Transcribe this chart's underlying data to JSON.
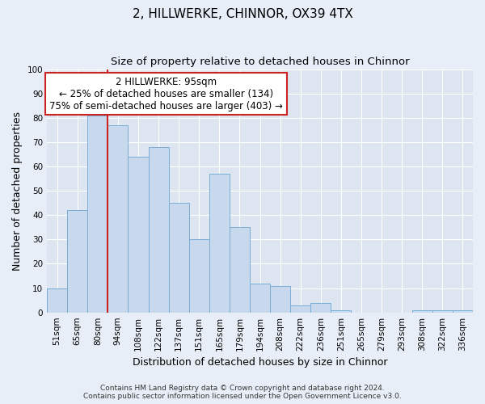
{
  "title": "2, HILLWERKE, CHINNOR, OX39 4TX",
  "subtitle": "Size of property relative to detached houses in Chinnor",
  "xlabel": "Distribution of detached houses by size in Chinnor",
  "ylabel": "Number of detached properties",
  "bar_labels": [
    "51sqm",
    "65sqm",
    "80sqm",
    "94sqm",
    "108sqm",
    "122sqm",
    "137sqm",
    "151sqm",
    "165sqm",
    "179sqm",
    "194sqm",
    "208sqm",
    "222sqm",
    "236sqm",
    "251sqm",
    "265sqm",
    "279sqm",
    "293sqm",
    "308sqm",
    "322sqm",
    "336sqm"
  ],
  "bar_values": [
    10,
    42,
    81,
    77,
    64,
    68,
    45,
    30,
    57,
    35,
    12,
    11,
    3,
    4,
    1,
    0,
    0,
    0,
    1,
    1,
    1
  ],
  "bar_color": "#c9d9ed",
  "bar_edge_color": "#7aaed6",
  "highlight_bar_index": 3,
  "vline_color": "#cc2222",
  "ylim": [
    0,
    100
  ],
  "annotation_title": "2 HILLWERKE: 95sqm",
  "annotation_line1": "← 25% of detached houses are smaller (134)",
  "annotation_line2": "75% of semi-detached houses are larger (403) →",
  "annotation_box_facecolor": "#ffffff",
  "annotation_box_edgecolor": "#cc2222",
  "footer_line1": "Contains HM Land Registry data © Crown copyright and database right 2024.",
  "footer_line2": "Contains public sector information licensed under the Open Government Licence v3.0.",
  "title_fontsize": 11,
  "subtitle_fontsize": 9.5,
  "axis_label_fontsize": 9,
  "tick_fontsize": 7.5,
  "annotation_fontsize": 8.5,
  "footer_fontsize": 6.5,
  "bg_color": "#e8eef7",
  "plot_bg_color": "#dde6f0",
  "grid_color": "#ffffff",
  "num_bars": 21
}
